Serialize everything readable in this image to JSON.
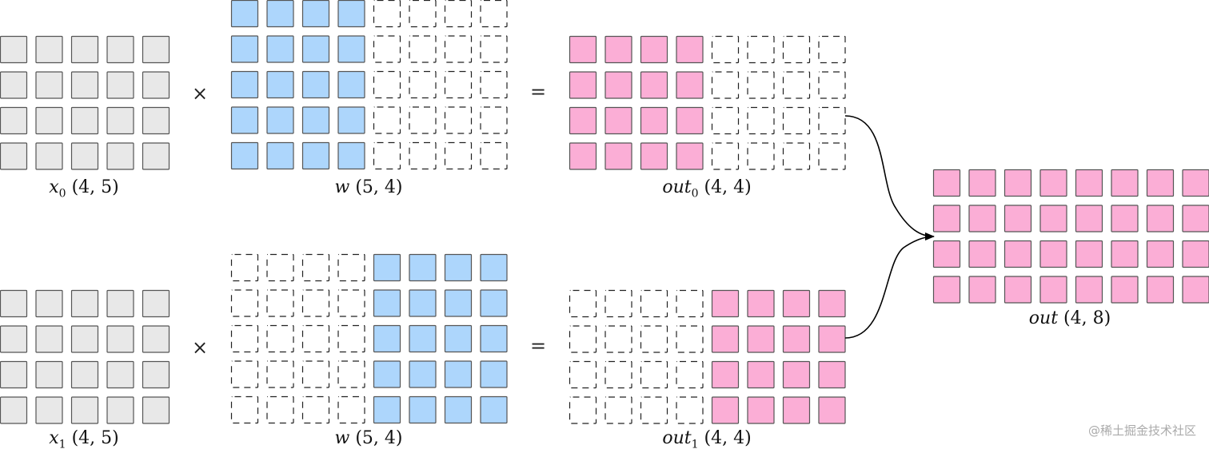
{
  "colors": {
    "input": "#e8e8e8",
    "weight": "#add6fc",
    "output": "#fbaed6",
    "stroke": "#555555",
    "dashed": "#222222"
  },
  "matrices": [
    {
      "id": "x0",
      "rows": 4,
      "cols": 5,
      "fill": "input",
      "filled_cols": [
        0,
        5
      ],
      "label": {
        "base": "x",
        "sub": "0",
        "dims": "(4, 5)"
      }
    },
    {
      "id": "w-top",
      "rows": 5,
      "cols": 8,
      "fill": "weight",
      "filled_cols": [
        0,
        4
      ],
      "label": {
        "base": "w",
        "sub": "",
        "dims": "(5, 4)"
      }
    },
    {
      "id": "out0",
      "rows": 4,
      "cols": 8,
      "fill": "output",
      "filled_cols": [
        0,
        4
      ],
      "label": {
        "base": "out",
        "sub": "0",
        "dims": "(4, 4)"
      }
    },
    {
      "id": "x1",
      "rows": 4,
      "cols": 5,
      "fill": "input",
      "filled_cols": [
        0,
        5
      ],
      "label": {
        "base": "x",
        "sub": "1",
        "dims": "(4, 5)"
      }
    },
    {
      "id": "w-bottom",
      "rows": 5,
      "cols": 8,
      "fill": "weight",
      "filled_cols": [
        4,
        8
      ],
      "label": {
        "base": "w",
        "sub": "",
        "dims": "(5, 4)"
      }
    },
    {
      "id": "out1",
      "rows": 4,
      "cols": 8,
      "fill": "output",
      "filled_cols": [
        4,
        8
      ],
      "label": {
        "base": "out",
        "sub": "1",
        "dims": "(4, 4)"
      }
    },
    {
      "id": "out",
      "rows": 4,
      "cols": 8,
      "fill": "output",
      "filled_cols": [
        0,
        8
      ],
      "label": {
        "base": "out",
        "sub": "",
        "dims": "(4, 8)"
      }
    }
  ],
  "operators": {
    "times": "×",
    "equals": "="
  },
  "edges": [
    {
      "from": "out0",
      "to": "out"
    },
    {
      "from": "out1",
      "to": "out"
    }
  ],
  "watermark": "@稀土掘金技术社区"
}
